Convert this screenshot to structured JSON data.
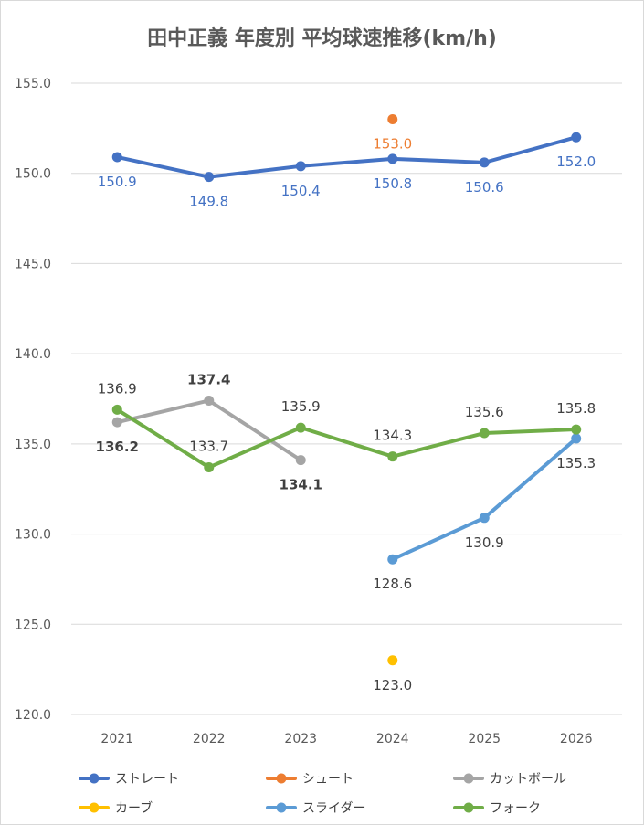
{
  "chart_data": {
    "type": "line",
    "title": "田中正義 年度別 平均球速推移(km/h)",
    "categories": [
      "2021",
      "2022",
      "2023",
      "2024",
      "2025",
      "2026"
    ],
    "ylim": [
      120.0,
      155.0
    ],
    "yticks": [
      "120.0",
      "125.0",
      "130.0",
      "135.0",
      "140.0",
      "145.0",
      "150.0",
      "155.0"
    ],
    "grid": true,
    "legend_position": "bottom",
    "series": [
      {
        "name": "ストレート",
        "color": "#4472C4",
        "values": [
          150.9,
          149.8,
          150.4,
          150.8,
          150.6,
          152.0
        ],
        "labels": [
          "150.9",
          "149.8",
          "150.4",
          "150.8",
          "150.6",
          "152.0"
        ]
      },
      {
        "name": "シュート",
        "color": "#ED7D31",
        "values": [
          null,
          null,
          null,
          153.0,
          null,
          null
        ],
        "labels": [
          null,
          null,
          null,
          "153.0",
          null,
          null
        ]
      },
      {
        "name": "カットボール",
        "color": "#A5A5A5",
        "values": [
          136.2,
          137.4,
          134.1,
          null,
          null,
          null
        ],
        "labels": [
          "136.2",
          "137.4",
          "134.1",
          null,
          null,
          null
        ]
      },
      {
        "name": "カーブ",
        "color": "#FFC000",
        "values": [
          null,
          null,
          null,
          123.0,
          null,
          null
        ],
        "labels": [
          null,
          null,
          null,
          "123.0",
          null,
          null
        ]
      },
      {
        "name": "スライダー",
        "color": "#5B9BD5",
        "values": [
          null,
          null,
          null,
          128.6,
          130.9,
          135.3
        ],
        "labels": [
          null,
          null,
          null,
          "128.6",
          "130.9",
          "135.3"
        ]
      },
      {
        "name": "フォーク",
        "color": "#70AD47",
        "values": [
          136.9,
          133.7,
          135.9,
          134.3,
          135.6,
          135.8
        ],
        "labels": [
          "136.9",
          "133.7",
          "135.9",
          "134.3",
          "135.6",
          "135.8"
        ]
      }
    ]
  }
}
